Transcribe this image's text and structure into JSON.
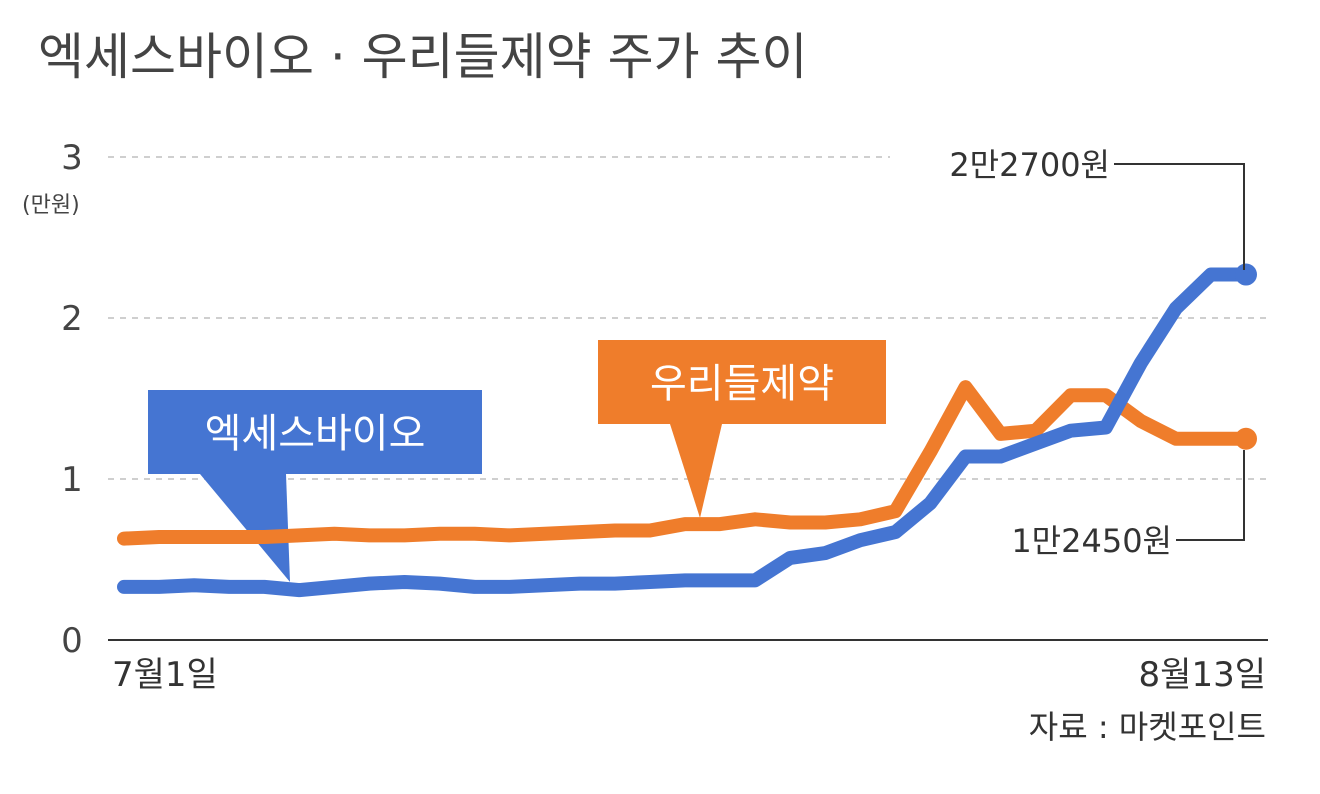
{
  "chart_data": {
    "type": "line",
    "title": "엑세스바이오 · 우리들제약 주가 추이",
    "y_unit": "(만원)",
    "ylim": [
      0,
      3
    ],
    "yticks": [
      "0",
      "1",
      "2",
      "3"
    ],
    "x_start_label": "7월1일",
    "x_end_label": "8월13일",
    "grid": true,
    "series": [
      {
        "name": "엑세스바이오",
        "color": "#4575d2",
        "end_label": "2만2700원",
        "values": [
          0.33,
          0.33,
          0.34,
          0.33,
          0.33,
          0.31,
          0.33,
          0.35,
          0.36,
          0.35,
          0.33,
          0.33,
          0.34,
          0.35,
          0.35,
          0.36,
          0.37,
          0.37,
          0.37,
          0.51,
          0.54,
          0.62,
          0.67,
          0.85,
          1.14,
          1.14,
          1.22,
          1.3,
          1.32,
          1.72,
          2.06,
          2.27,
          2.27
        ]
      },
      {
        "name": "우리들제약",
        "color": "#ef7d2b",
        "end_label": "1만2450원",
        "values": [
          0.63,
          0.64,
          0.64,
          0.64,
          0.64,
          0.65,
          0.66,
          0.65,
          0.65,
          0.66,
          0.66,
          0.65,
          0.66,
          0.67,
          0.68,
          0.68,
          0.72,
          0.72,
          0.75,
          0.73,
          0.73,
          0.75,
          0.8,
          1.17,
          1.57,
          1.28,
          1.3,
          1.52,
          1.52,
          1.36,
          1.25,
          1.25,
          1.25
        ]
      }
    ],
    "source": "자료 : 마켓포인트"
  }
}
